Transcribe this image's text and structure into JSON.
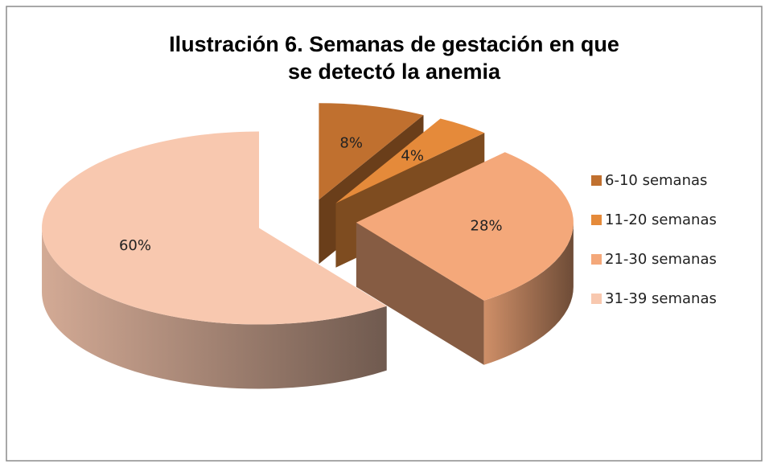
{
  "chart_data": {
    "type": "pie",
    "title": "Ilustración 6. Semanas de gestación en que se detectó la anemia",
    "categories": [
      "6-10 semanas",
      "11-20 semanas",
      "21-30 semanas",
      "31-39 semanas"
    ],
    "values": [
      8,
      4,
      28,
      60
    ],
    "value_labels": [
      "8%",
      "4%",
      "28%",
      "60%"
    ],
    "colors": [
      "#c0702f",
      "#e58a3a",
      "#f4a87a",
      "#f8c8af"
    ],
    "legend": "right"
  }
}
